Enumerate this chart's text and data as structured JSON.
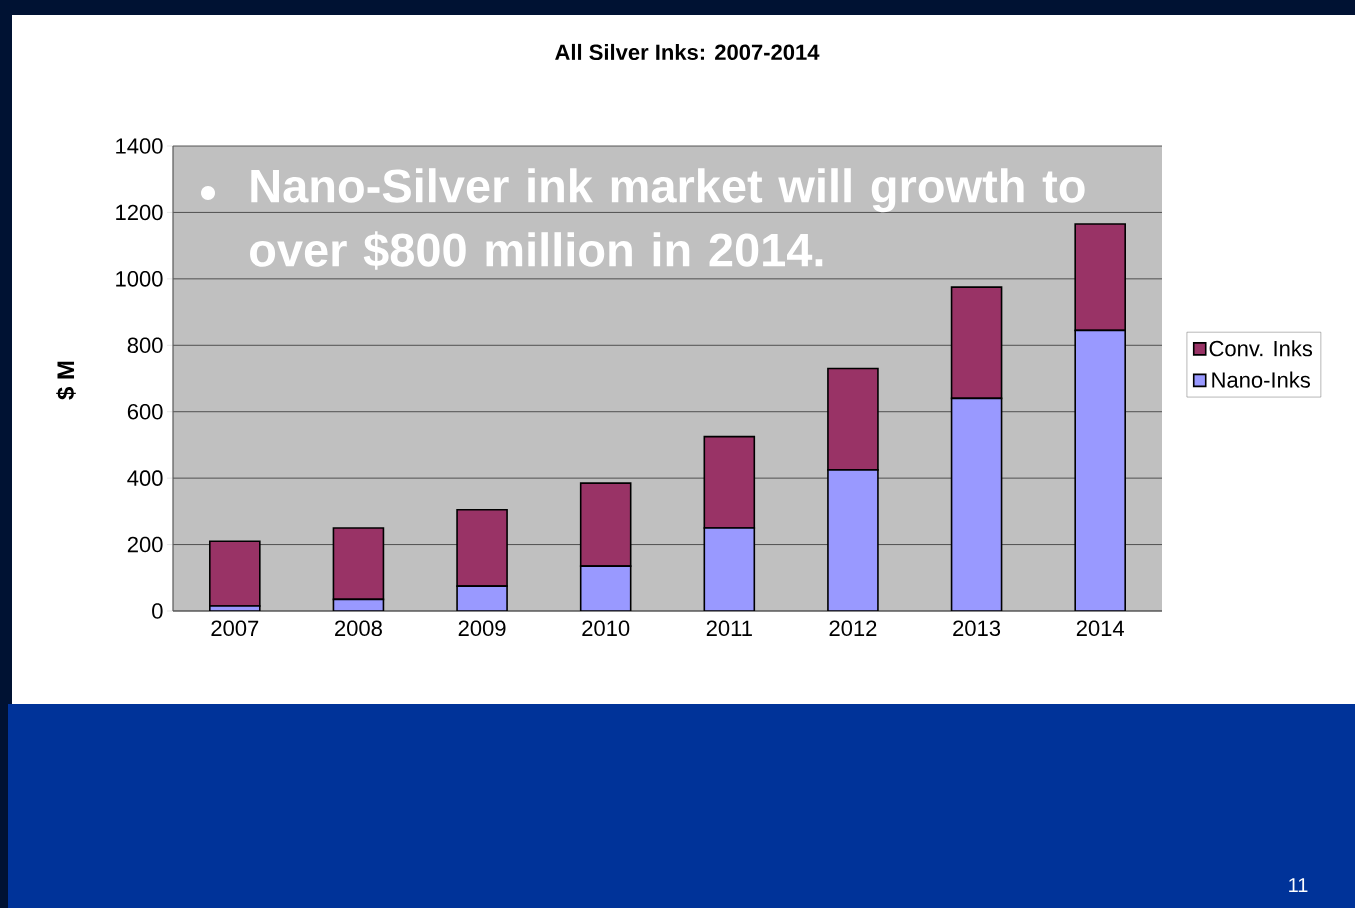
{
  "chart_data": {
    "type": "bar",
    "title": "All Silver Inks: 2007-2014",
    "ylabel": "$ M",
    "categories": [
      "2007",
      "2008",
      "2009",
      "2010",
      "2011",
      "2012",
      "2013",
      "2014"
    ],
    "series": [
      {
        "name": "Nano-Inks",
        "color": "#9999ff",
        "values": [
          15,
          35,
          75,
          135,
          250,
          425,
          640,
          845
        ]
      },
      {
        "name": "Conv. Inks",
        "color": "#993366",
        "values": [
          195,
          215,
          230,
          250,
          275,
          305,
          335,
          320
        ]
      }
    ],
    "stacked": true,
    "ylim": [
      0,
      1400
    ],
    "yticks": [
      0,
      200,
      400,
      600,
      800,
      1000,
      1200,
      1400
    ],
    "grid": "y",
    "legend": "right",
    "annotations": [
      "Nano-Silver ink market will growth to over $800 million in 2014.",
      "11"
    ]
  }
}
